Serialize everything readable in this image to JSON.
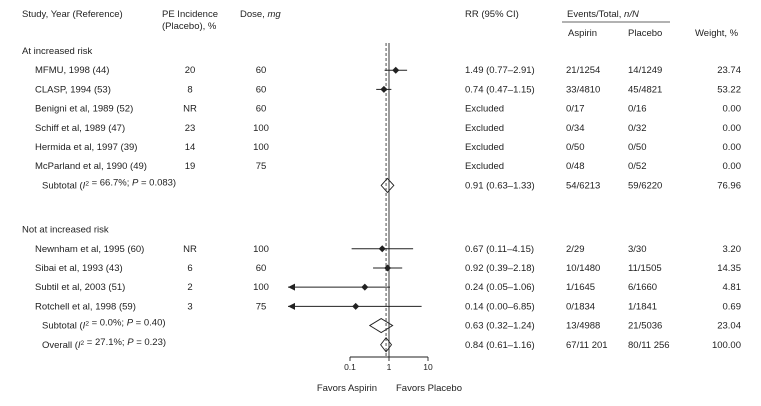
{
  "headers": {
    "study": "Study, Year (Reference)",
    "pe_line1": "PE Incidence",
    "pe_line2": "(Placebo), %",
    "dose_prefix": "Dose, ",
    "dose_unit": "mg",
    "rr": "RR (95% CI)",
    "events_prefix": "Events/Total, ",
    "events_unit": "n/N",
    "aspirin": "Aspirin",
    "placebo": "Placebo",
    "weight": "Weight, %"
  },
  "favors": {
    "left": "Favors Aspirin",
    "right": "Favors Placebo"
  },
  "chart_data": {
    "type": "forest",
    "x_scale": "log",
    "xlim": [
      0.1,
      10
    ],
    "xticks": [
      {
        "value": 0.1,
        "label": "0.1"
      },
      {
        "value": 1,
        "label": "1"
      },
      {
        "value": 10,
        "label": "10"
      }
    ],
    "reference_line": 1,
    "overall_dashed_line": 0.84,
    "groups": [
      {
        "label": "At increased risk",
        "studies": [
          {
            "study": "MFMU, 1998 (44)",
            "pe": "20",
            "dose": "60",
            "rr": 1.49,
            "lo": 0.77,
            "hi": 2.91,
            "rr_text": "1.49 (0.77–2.91)",
            "aspirin": "21/1254",
            "placebo": "14/1249",
            "weight": "23.74"
          },
          {
            "study": "CLASP, 1994 (53)",
            "pe": "8",
            "dose": "60",
            "rr": 0.74,
            "lo": 0.47,
            "hi": 1.15,
            "rr_text": "0.74 (0.47–1.15)",
            "aspirin": "33/4810",
            "placebo": "45/4821",
            "weight": "53.22"
          },
          {
            "study": "Benigni et al, 1989 (52)",
            "pe": "NR",
            "dose": "60",
            "rr": null,
            "lo": null,
            "hi": null,
            "rr_text": "Excluded",
            "aspirin": "0/17",
            "placebo": "0/16",
            "weight": "0.00"
          },
          {
            "study": "Schiff et al, 1989 (47)",
            "pe": "23",
            "dose": "100",
            "rr": null,
            "lo": null,
            "hi": null,
            "rr_text": "Excluded",
            "aspirin": "0/34",
            "placebo": "0/32",
            "weight": "0.00"
          },
          {
            "study": "Hermida et al, 1997 (39)",
            "pe": "14",
            "dose": "100",
            "rr": null,
            "lo": null,
            "hi": null,
            "rr_text": "Excluded",
            "aspirin": "0/50",
            "placebo": "0/50",
            "weight": "0.00"
          },
          {
            "study": "McParland et al, 1990 (49)",
            "pe": "19",
            "dose": "75",
            "rr": null,
            "lo": null,
            "hi": null,
            "rr_text": "Excluded",
            "aspirin": "0/48",
            "placebo": "0/52",
            "weight": "0.00"
          }
        ],
        "subtotal": {
          "label": "Subtotal (I² = 66.7%; P = 0.083)",
          "rr": 0.91,
          "lo": 0.63,
          "hi": 1.33,
          "rr_text": "0.91 (0.63–1.33)",
          "aspirin": "54/6213",
          "placebo": "59/6220",
          "weight": "76.96"
        }
      },
      {
        "label": "Not at increased risk",
        "studies": [
          {
            "study": "Newnham et al, 1995 (60)",
            "pe": "NR",
            "dose": "100",
            "rr": 0.67,
            "lo": 0.11,
            "hi": 4.15,
            "rr_text": "0.67 (0.11–4.15)",
            "aspirin": "2/29",
            "placebo": "3/30",
            "weight": "3.20"
          },
          {
            "study": "Sibai et al, 1993 (43)",
            "pe": "6",
            "dose": "60",
            "rr": 0.92,
            "lo": 0.39,
            "hi": 2.18,
            "rr_text": "0.92 (0.39–2.18)",
            "aspirin": "10/1480",
            "placebo": "11/1505",
            "weight": "14.35"
          },
          {
            "study": "Subtil et al, 2003 (51)",
            "pe": "2",
            "dose": "100",
            "rr": 0.24,
            "lo": 0.05,
            "hi": 1.06,
            "rr_text": "0.24 (0.05–1.06)",
            "aspirin": "1/1645",
            "placebo": "6/1660",
            "weight": "4.81"
          },
          {
            "study": "Rotchell et al, 1998 (59)",
            "pe": "3",
            "dose": "75",
            "rr": 0.14,
            "lo": 0.0,
            "hi": 6.85,
            "rr_text": "0.14 (0.00–6.85)",
            "aspirin": "0/1834",
            "placebo": "1/1841",
            "weight": "0.69"
          }
        ],
        "subtotal": {
          "label": "Subtotal (I² = 0.0%; P = 0.40)",
          "rr": 0.63,
          "lo": 0.32,
          "hi": 1.24,
          "rr_text": "0.63 (0.32–1.24)",
          "aspirin": "13/4988",
          "placebo": "21/5036",
          "weight": "23.04"
        }
      }
    ],
    "overall": {
      "label": "Overall (I² = 27.1%; P = 0.23)",
      "rr": 0.84,
      "lo": 0.61,
      "hi": 1.16,
      "rr_text": "0.84 (0.61–1.16)",
      "aspirin": "67/11 201",
      "placebo": "80/11 256",
      "weight": "100.00"
    }
  }
}
